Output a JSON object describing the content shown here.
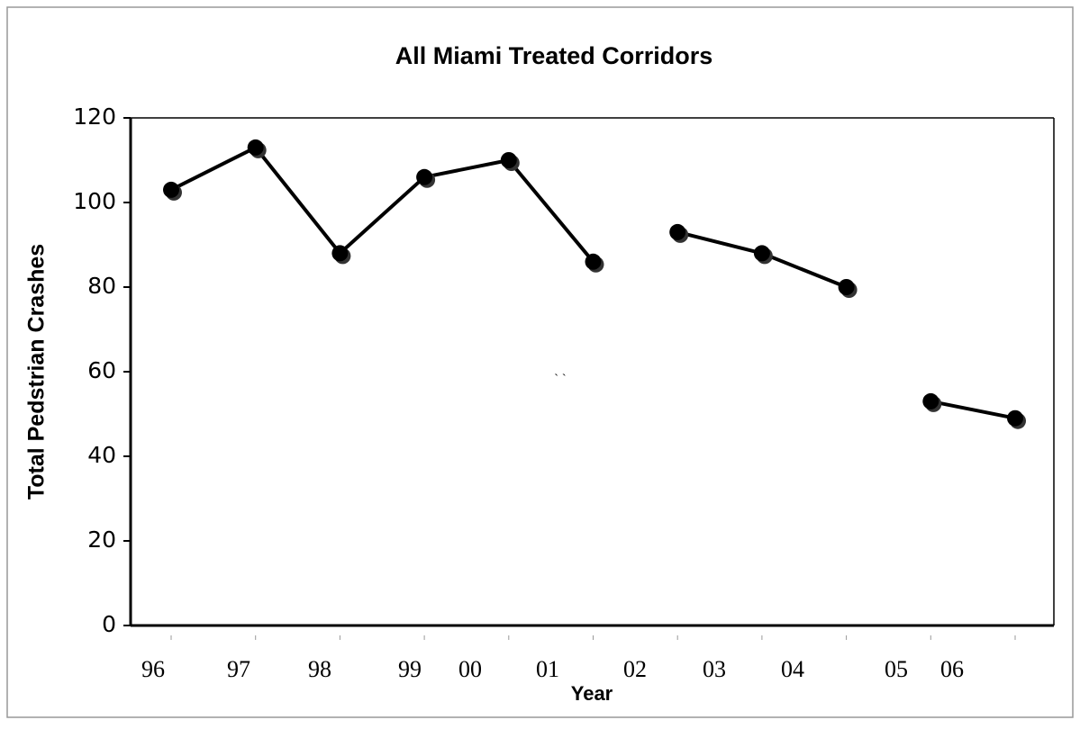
{
  "chart_data": {
    "type": "line",
    "title": "All Miami Treated Corridors",
    "y_label": "Total Pedstrian Crashes",
    "x_label": "Year",
    "annotation": "` `",
    "categories": [
      "96",
      "97",
      "98",
      "99",
      "00",
      "01",
      "02",
      "03",
      "04",
      "05",
      "06"
    ],
    "series": [
      {
        "color": "#000000",
        "values": [
          103,
          113,
          88,
          106,
          110,
          86,
          null,
          null,
          null,
          null,
          null
        ]
      },
      {
        "color": "#000000",
        "values": [
          null,
          null,
          null,
          null,
          null,
          null,
          93,
          88,
          80,
          null,
          null
        ]
      },
      {
        "color": "#000000",
        "values": [
          null,
          null,
          null,
          null,
          null,
          null,
          null,
          null,
          null,
          53,
          49
        ]
      }
    ],
    "ylim": [
      0,
      120
    ],
    "yticks": [
      0,
      20,
      40,
      60,
      80,
      100,
      120
    ],
    "grid": false
  }
}
